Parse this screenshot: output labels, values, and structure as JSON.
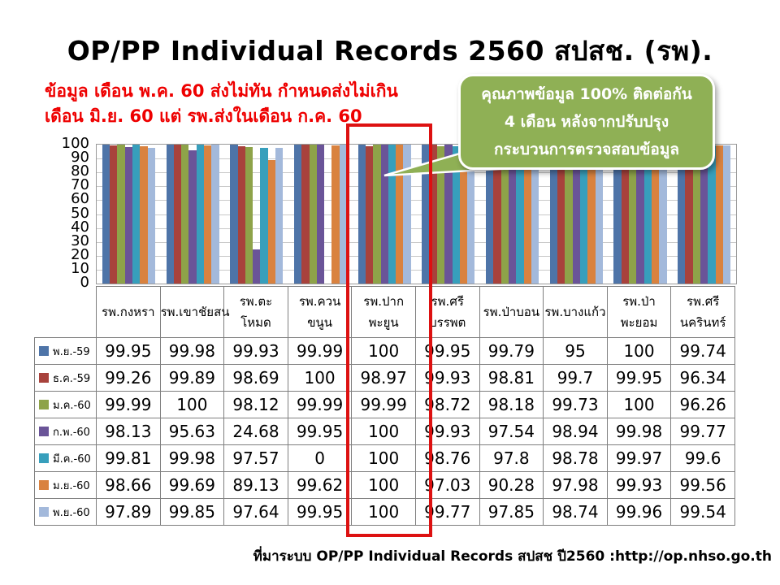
{
  "title": "OP/PP Individual Records 2560 สปสช. (รพ).",
  "annotation_red": {
    "color": "#ee0000",
    "line1": "ข้อมูล เดือน พ.ค. 60 ส่งไม่ทัน กำหนดส่งไม่เกิน",
    "line2": "เดือน มิ.ย. 60 แต่ รพ.ส่งในเดือน ก.ค. 60"
  },
  "callout": {
    "fill": "#8FB055",
    "line1": "คุณภาพข้อมูล 100% ติดต่อกัน",
    "line2": "4 เดือน หลังจากปรับปรุง",
    "line3": "กระบวนการตรวจสอบข้อมูล"
  },
  "highlight": {
    "column": "รพ.ปากพะยูน",
    "color": "#dd1111"
  },
  "source": "ที่มาระบบ OP/PP Individual Records สปสช ปี2560 :http://op.nhso.go.th",
  "chart_data": {
    "type": "bar",
    "title": "OP/PP Individual Records 2560 สปสช. (รพ).",
    "xlabel": "",
    "ylabel": "",
    "ylim": [
      0,
      100
    ],
    "ytick_step": 10,
    "grid": true,
    "legend_position": "table-left",
    "categories": [
      "รพ.กงหรา",
      "รพ.เขาชัยสน",
      "รพ.ตะโหมด",
      "รพ.ควน\nขนูน",
      "รพ.ปาก\nพะยูน",
      "รพ.ศรี\nบรรพต",
      "รพ.ป่าบอน",
      "รพ.บางแก้ว",
      "รพ.ป่า\nพะยอม",
      "รพ.ศรี\nนครินทร์"
    ],
    "series": [
      {
        "name": "พ.ย.-59",
        "color": "#4E74A8",
        "values": [
          99.95,
          99.98,
          99.93,
          99.99,
          100,
          99.95,
          99.79,
          95,
          100,
          99.74
        ]
      },
      {
        "name": "ธ.ค.-59",
        "color": "#A8423C",
        "values": [
          99.26,
          99.89,
          98.69,
          100,
          98.97,
          99.93,
          98.81,
          99.7,
          99.95,
          96.34
        ]
      },
      {
        "name": "ม.ค.-60",
        "color": "#8EA349",
        "values": [
          99.99,
          100,
          98.12,
          99.99,
          99.99,
          98.72,
          98.18,
          99.73,
          100,
          96.26
        ]
      },
      {
        "name": "ก.พ.-60",
        "color": "#6A5498",
        "values": [
          98.13,
          95.63,
          24.68,
          99.95,
          100,
          99.93,
          97.54,
          98.94,
          99.98,
          99.77
        ]
      },
      {
        "name": "มี.ค.-60",
        "color": "#379FBC",
        "values": [
          99.81,
          99.98,
          97.57,
          0,
          100,
          98.76,
          97.8,
          98.78,
          99.97,
          99.6
        ]
      },
      {
        "name": "ม.ย.-60",
        "color": "#D9823F",
        "values": [
          98.66,
          99.69,
          89.13,
          99.62,
          100,
          97.03,
          90.28,
          97.98,
          99.93,
          99.56
        ]
      },
      {
        "name": "พ.ย.-60",
        "color": "#A3B9DB",
        "values": [
          97.89,
          99.85,
          97.64,
          99.95,
          100,
          99.77,
          97.85,
          98.74,
          99.96,
          99.54
        ]
      }
    ]
  }
}
